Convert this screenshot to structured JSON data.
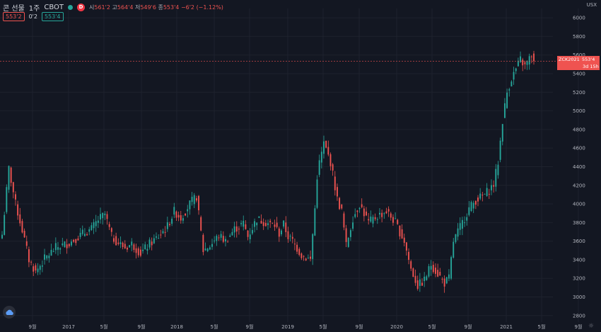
{
  "header": {
    "symbol": "콘 선물",
    "interval": "1주",
    "exchange": "CBOT",
    "badge": "D",
    "open_label": "시",
    "open": "561'2",
    "high_label": "고",
    "high": "564'4",
    "low_label": "저",
    "low": "549'6",
    "close_label": "종",
    "close": "553'4",
    "change": "−6'2 (−1.12%)"
  },
  "buttons": {
    "sell": "553'2",
    "spread": "0'2",
    "buy": "553'4"
  },
  "currency": "USX",
  "price_label": {
    "date": "ZCK2021",
    "price": "553'4",
    "countdown": "3d 15h"
  },
  "colors": {
    "up": "#26a69a",
    "down": "#ef5350",
    "background": "#131722",
    "grid": "#1e222d"
  },
  "chart_data": {
    "type": "candlestick",
    "y_ticks": [
      "2800",
      "3000",
      "3200",
      "3400",
      "3600",
      "3800",
      "4000",
      "4200",
      "4400",
      "4600",
      "4800",
      "5000",
      "5200",
      "5400",
      "5600",
      "5800",
      "6000"
    ],
    "y_tick_values": [
      280,
      300,
      320,
      340,
      360,
      380,
      400,
      420,
      440,
      460,
      480,
      500,
      520,
      540,
      560,
      580,
      600
    ],
    "ylim": [
      273,
      610
    ],
    "x_ticks": [
      "9월",
      "2017",
      "5월",
      "9월",
      "2018",
      "5월",
      "9월",
      "2019",
      "5월",
      "9월",
      "2020",
      "5월",
      "9월",
      "2021",
      "5월",
      "9월"
    ],
    "last_price": 553.5,
    "anchors": [
      [
        0,
        367
      ],
      [
        3,
        438
      ],
      [
        6,
        400
      ],
      [
        9,
        372
      ],
      [
        12,
        340
      ],
      [
        15,
        327
      ],
      [
        19,
        341
      ],
      [
        24,
        353
      ],
      [
        30,
        358
      ],
      [
        36,
        368
      ],
      [
        40,
        373
      ],
      [
        43,
        383
      ],
      [
        46,
        389
      ],
      [
        49,
        365
      ],
      [
        52,
        358
      ],
      [
        55,
        353
      ],
      [
        58,
        357
      ],
      [
        62,
        347
      ],
      [
        66,
        357
      ],
      [
        70,
        365
      ],
      [
        74,
        376
      ],
      [
        77,
        392
      ],
      [
        80,
        385
      ],
      [
        84,
        400
      ],
      [
        87,
        408
      ],
      [
        90,
        350
      ],
      [
        93,
        355
      ],
      [
        97,
        366
      ],
      [
        100,
        360
      ],
      [
        104,
        373
      ],
      [
        108,
        379
      ],
      [
        110,
        365
      ],
      [
        114,
        384
      ],
      [
        118,
        380
      ],
      [
        122,
        377
      ],
      [
        124,
        368
      ],
      [
        126,
        378
      ],
      [
        128,
        365
      ],
      [
        130,
        360
      ],
      [
        134,
        345
      ],
      [
        138,
        340
      ],
      [
        140,
        395
      ],
      [
        141,
        430
      ],
      [
        142,
        444
      ],
      [
        144,
        465
      ],
      [
        147,
        445
      ],
      [
        150,
        405
      ],
      [
        152,
        392
      ],
      [
        154,
        355
      ],
      [
        157,
        385
      ],
      [
        160,
        400
      ],
      [
        164,
        380
      ],
      [
        168,
        387
      ],
      [
        172,
        392
      ],
      [
        176,
        380
      ],
      [
        180,
        360
      ],
      [
        183,
        330
      ],
      [
        186,
        312
      ],
      [
        189,
        318
      ],
      [
        192,
        335
      ],
      [
        195,
        325
      ],
      [
        198,
        315
      ],
      [
        200,
        320
      ],
      [
        202,
        360
      ],
      [
        205,
        375
      ],
      [
        209,
        395
      ],
      [
        212,
        404
      ],
      [
        216,
        410
      ],
      [
        220,
        421
      ],
      [
        222,
        445
      ],
      [
        224,
        490
      ],
      [
        226,
        520
      ],
      [
        228,
        535
      ],
      [
        230,
        545
      ],
      [
        232,
        555
      ],
      [
        234,
        548
      ],
      [
        237,
        560
      ],
      [
        238,
        553.5
      ]
    ]
  }
}
